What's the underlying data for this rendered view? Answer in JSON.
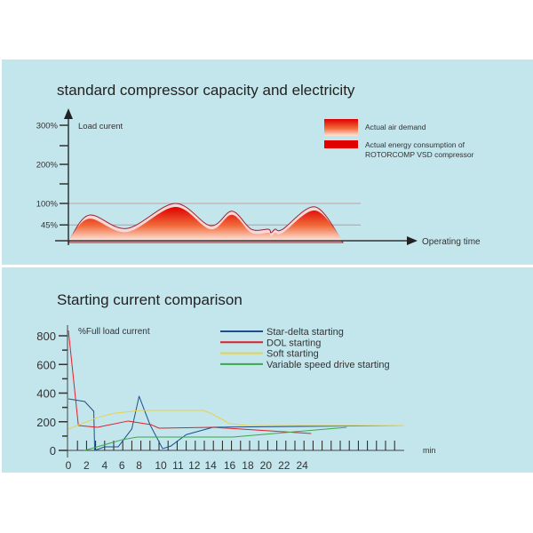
{
  "chart_data": [
    {
      "type": "area",
      "title": "standard compressor capacity and electricity",
      "ylabel": "Load curent",
      "xlabel": "Operating time",
      "y_ticks": [
        {
          "value": 300,
          "label": "300%"
        },
        {
          "value": 250,
          "label": ""
        },
        {
          "value": 200,
          "label": "200%"
        },
        {
          "value": 150,
          "label": ""
        },
        {
          "value": 100,
          "label": "100%"
        },
        {
          "value": 45,
          "label": "45%"
        }
      ],
      "reference_lines": [
        100,
        45
      ],
      "ylim": [
        0,
        320
      ],
      "xlim": [
        0,
        100
      ],
      "legend": [
        {
          "label": "Actual air demand",
          "style": "gradient",
          "color": "#e00000"
        },
        {
          "label": "Actual energy consumption of ROTORCOMP VSD compressor",
          "line1": "Actual energy consumption of",
          "line2": "ROTORCOMP VSD compressor",
          "style": "solid",
          "color": "#e00000"
        }
      ],
      "legend_position": "top-right",
      "series": [
        {
          "name": "Actual air demand",
          "x": [
            0,
            7,
            20,
            36.5,
            48.6,
            56,
            62.6,
            68.4,
            69.3,
            70.8,
            73.3,
            84.5,
            93.9
          ],
          "y": [
            0,
            70,
            36,
            100,
            43,
            80,
            34,
            34,
            25,
            34,
            34,
            91,
            0
          ]
        }
      ]
    },
    {
      "type": "line",
      "title": "Starting current comparison",
      "ylabel": "%Full load current",
      "xlabel": "min",
      "ylim": [
        0,
        800
      ],
      "y_ticks": [
        {
          "value": 800,
          "label": "800"
        },
        {
          "value": 700,
          "label": ""
        },
        {
          "value": 600,
          "label": "600"
        },
        {
          "value": 500,
          "label": ""
        },
        {
          "value": 400,
          "label": "400"
        },
        {
          "value": 300,
          "label": ""
        },
        {
          "value": 200,
          "label": "200"
        },
        {
          "value": 100,
          "label": ""
        },
        {
          "value": 0,
          "label": "0"
        }
      ],
      "x_tick_count": 37,
      "x_labels": [
        {
          "label": "0",
          "pos": 0
        },
        {
          "label": "2",
          "pos": 2
        },
        {
          "label": "4",
          "pos": 4
        },
        {
          "label": "6",
          "pos": 5.9
        },
        {
          "label": "8",
          "pos": 7.8
        },
        {
          "label": "10",
          "pos": 10.2
        },
        {
          "label": "11",
          "pos": 12.1
        },
        {
          "label": "12",
          "pos": 13.9
        },
        {
          "label": "14",
          "pos": 15.7
        },
        {
          "label": "16",
          "pos": 17.8
        },
        {
          "label": "18",
          "pos": 19.8
        },
        {
          "label": "20",
          "pos": 21.8
        },
        {
          "label": "22",
          "pos": 23.8
        },
        {
          "label": "24",
          "pos": 25.8
        }
      ],
      "legend_position": "top",
      "series": [
        {
          "name": "Star-delta starting",
          "color": "#1c4f8c",
          "x": [
            0,
            1.8,
            2.8,
            2.9,
            4,
            5.5,
            7,
            7.8,
            9,
            10.4,
            11.3,
            13,
            16,
            37
          ],
          "y": [
            360,
            341,
            273,
            0,
            25,
            25,
            150,
            378,
            180,
            12,
            30,
            110,
            162,
            174
          ]
        },
        {
          "name": "DOL starting",
          "color": "#e0202a",
          "x": [
            0,
            1.1,
            3.2,
            6.6,
            9.1,
            10,
            16,
            26.8
          ],
          "y": [
            837,
            174,
            161,
            205,
            180,
            155,
            161,
            118
          ]
        },
        {
          "name": "Soft starting",
          "color": "#e8d24a",
          "x": [
            0,
            3.2,
            5.1,
            8,
            14.9,
            15.9,
            17.8,
            19.8,
            37
          ],
          "y": [
            149,
            229,
            260,
            279,
            279,
            254,
            186,
            174,
            174
          ]
        },
        {
          "name": "Variable speed drive starting",
          "color": "#3aa84a",
          "x": [
            1.8,
            5.9,
            7.6,
            18.1,
            30.7
          ],
          "y": [
            0,
            74,
            93,
            93,
            161
          ]
        }
      ]
    }
  ]
}
